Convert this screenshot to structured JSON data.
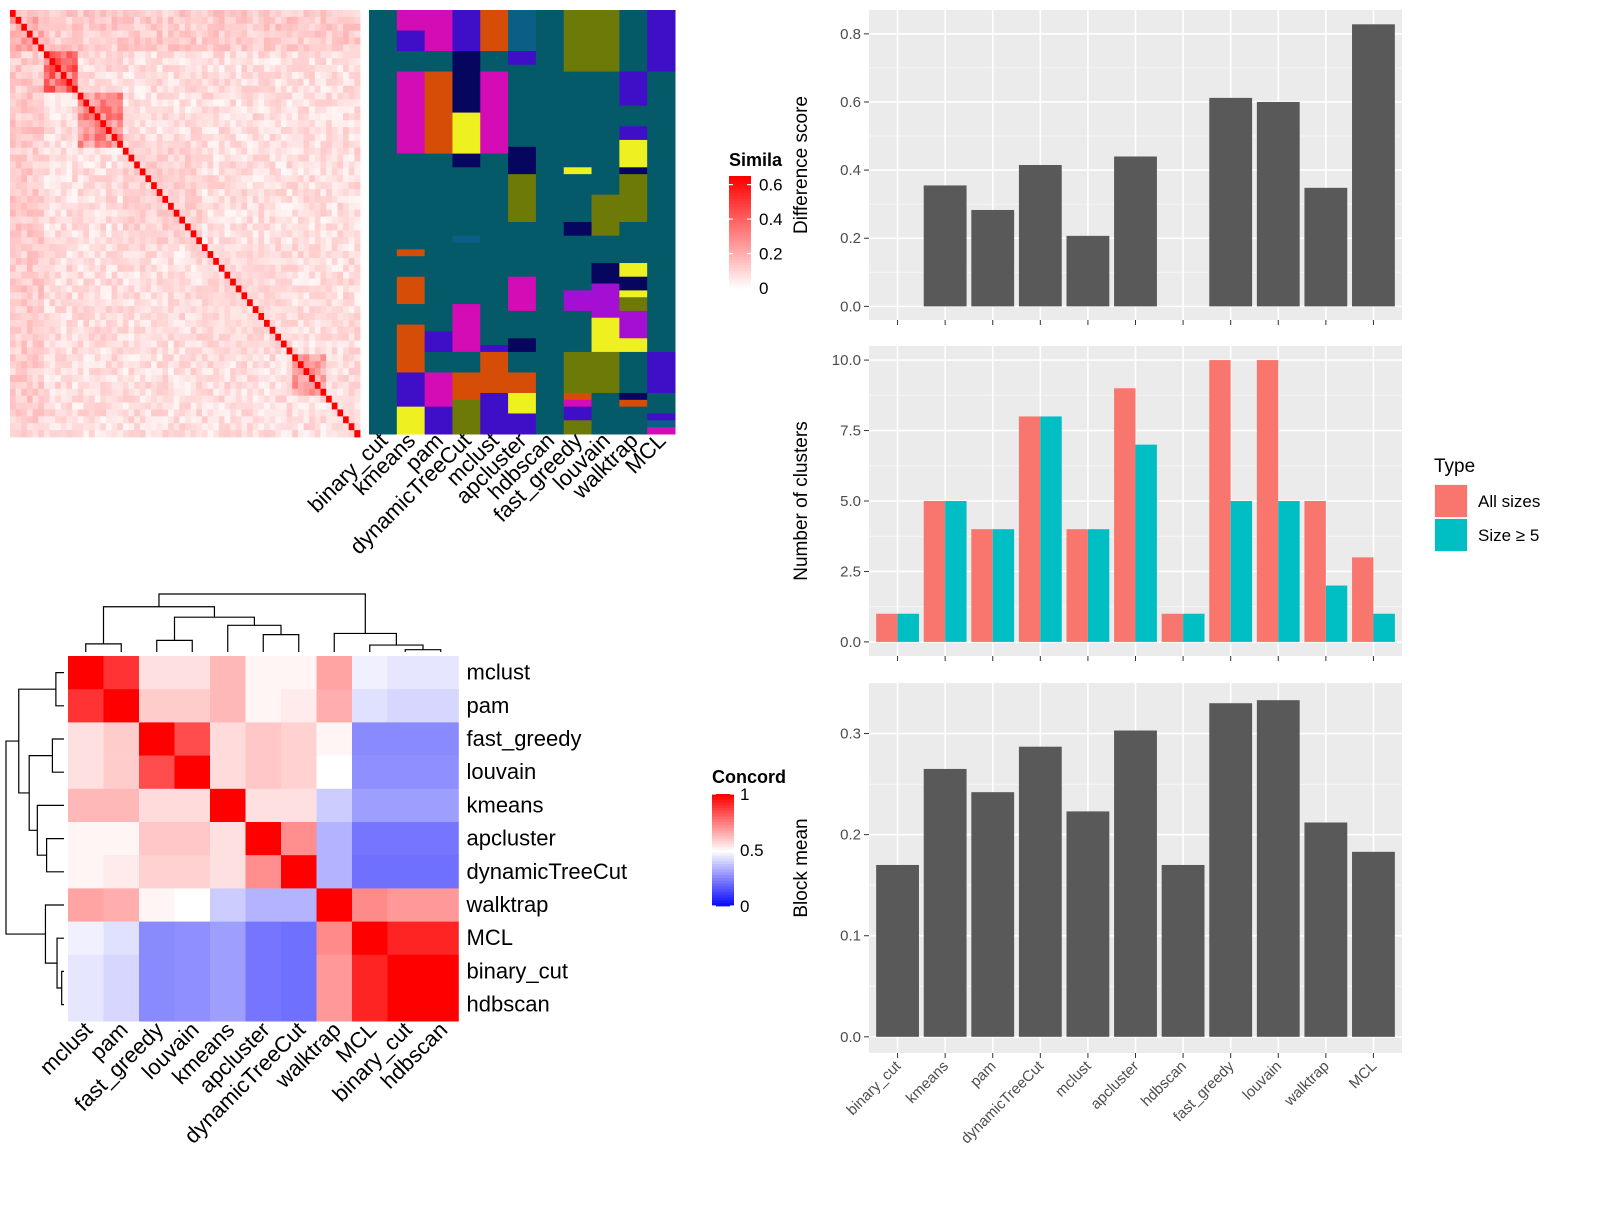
{
  "chart_data": [
    {
      "id": "similarity",
      "type": "heatmap",
      "legend_title": "Simila",
      "legend_ticks": [
        "0.6",
        "0.4",
        "0.2",
        "0"
      ],
      "legend_values": [
        0.6,
        0.4,
        0.2,
        0
      ],
      "scale": {
        "min": 0,
        "max": 0.65,
        "low": "#ffffff",
        "high": "#ff0000"
      },
      "n_cells": 62
    },
    {
      "id": "cluster-assignments",
      "type": "heatmap",
      "columns": [
        "binary_cut",
        "kmeans",
        "pam",
        "dynamicTreeCut",
        "mclust",
        "apcluster",
        "hdbscan",
        "fast_greedy",
        "louvain",
        "walktrap",
        "MCL"
      ],
      "palette": [
        "#045a69",
        "#d30cb6",
        "#3f0fc8",
        "#d64d08",
        "#0b5f86",
        "#6e7a08",
        "#eef020",
        "#07065e",
        "#a50fd4"
      ],
      "segments": [
        [
          [
            0,
            62,
            0
          ]
        ],
        [
          [
            0,
            3,
            1
          ],
          [
            3,
            6,
            2
          ],
          [
            6,
            9,
            0
          ],
          [
            9,
            21,
            1
          ],
          [
            21,
            35,
            0
          ],
          [
            35,
            36,
            3
          ],
          [
            36,
            39,
            0
          ],
          [
            39,
            43,
            3
          ],
          [
            43,
            46,
            0
          ],
          [
            46,
            53,
            3
          ],
          [
            53,
            58,
            2
          ],
          [
            58,
            62,
            6
          ]
        ],
        [
          [
            0,
            6,
            1
          ],
          [
            6,
            9,
            0
          ],
          [
            9,
            21,
            3
          ],
          [
            21,
            47,
            0
          ],
          [
            47,
            50,
            2
          ],
          [
            50,
            53,
            0
          ],
          [
            53,
            58,
            1
          ],
          [
            58,
            62,
            2
          ]
        ],
        [
          [
            0,
            6,
            2
          ],
          [
            6,
            9,
            7
          ],
          [
            9,
            15,
            7
          ],
          [
            15,
            21,
            6
          ],
          [
            21,
            23,
            7
          ],
          [
            23,
            33,
            0
          ],
          [
            33,
            34,
            4
          ],
          [
            34,
            43,
            0
          ],
          [
            43,
            50,
            1
          ],
          [
            50,
            53,
            0
          ],
          [
            53,
            57,
            3
          ],
          [
            57,
            62,
            5
          ]
        ],
        [
          [
            0,
            6,
            3
          ],
          [
            6,
            9,
            0
          ],
          [
            9,
            21,
            1
          ],
          [
            21,
            49,
            0
          ],
          [
            49,
            50,
            2
          ],
          [
            50,
            56,
            3
          ],
          [
            56,
            62,
            2
          ]
        ],
        [
          [
            0,
            6,
            4
          ],
          [
            6,
            8,
            2
          ],
          [
            8,
            20,
            0
          ],
          [
            20,
            24,
            7
          ],
          [
            24,
            31,
            5
          ],
          [
            31,
            39,
            0
          ],
          [
            39,
            44,
            1
          ],
          [
            44,
            48,
            0
          ],
          [
            48,
            50,
            7
          ],
          [
            50,
            53,
            0
          ],
          [
            53,
            56,
            3
          ],
          [
            56,
            59,
            6
          ],
          [
            59,
            62,
            2
          ]
        ],
        [
          [
            0,
            62,
            0
          ]
        ],
        [
          [
            0,
            9,
            5
          ],
          [
            9,
            23,
            0
          ],
          [
            23,
            24,
            6
          ],
          [
            24,
            31,
            0
          ],
          [
            31,
            33,
            7
          ],
          [
            33,
            41,
            0
          ],
          [
            41,
            44,
            8
          ],
          [
            44,
            46,
            0
          ],
          [
            46,
            50,
            0
          ],
          [
            50,
            56,
            5
          ],
          [
            56,
            57,
            3
          ],
          [
            57,
            58,
            1
          ],
          [
            58,
            60,
            2
          ],
          [
            60,
            62,
            5
          ]
        ],
        [
          [
            0,
            9,
            5
          ],
          [
            9,
            21,
            0
          ],
          [
            21,
            27,
            0
          ],
          [
            27,
            33,
            5
          ],
          [
            33,
            37,
            0
          ],
          [
            37,
            40,
            7
          ],
          [
            40,
            45,
            8
          ],
          [
            45,
            50,
            6
          ],
          [
            50,
            56,
            5
          ],
          [
            56,
            62,
            0
          ]
        ],
        [
          [
            0,
            9,
            0
          ],
          [
            9,
            14,
            2
          ],
          [
            14,
            17,
            0
          ],
          [
            17,
            19,
            2
          ],
          [
            19,
            23,
            6
          ],
          [
            23,
            24,
            7
          ],
          [
            24,
            31,
            5
          ],
          [
            31,
            37,
            0
          ],
          [
            37,
            39,
            6
          ],
          [
            39,
            41,
            7
          ],
          [
            41,
            42,
            6
          ],
          [
            42,
            44,
            5
          ],
          [
            44,
            48,
            8
          ],
          [
            48,
            50,
            6
          ],
          [
            50,
            56,
            0
          ],
          [
            56,
            57,
            7
          ],
          [
            57,
            58,
            3
          ],
          [
            58,
            62,
            0
          ]
        ],
        [
          [
            0,
            9,
            2
          ],
          [
            9,
            50,
            0
          ],
          [
            50,
            56,
            2
          ],
          [
            56,
            59,
            0
          ],
          [
            59,
            60,
            2
          ],
          [
            60,
            61,
            4
          ],
          [
            61,
            62,
            1
          ]
        ]
      ]
    },
    {
      "id": "concordance",
      "type": "heatmap",
      "legend_title": "Concord",
      "legend_ticks": [
        "1",
        "0.5",
        "0"
      ],
      "legend_values": [
        1,
        0.5,
        0
      ],
      "scale": {
        "min": 0,
        "mid": 0.5,
        "max": 1,
        "low": "#0000ff",
        "midColor": "#ffffff",
        "high": "#ff0000"
      },
      "labels": [
        "mclust",
        "pam",
        "fast_greedy",
        "louvain",
        "kmeans",
        "apcluster",
        "dynamicTreeCut",
        "walktrap",
        "MCL",
        "binary_cut",
        "hdbscan"
      ],
      "matrix": [
        [
          1.0,
          0.9,
          0.56,
          0.56,
          0.64,
          0.52,
          0.52,
          0.68,
          0.47,
          0.45,
          0.45
        ],
        [
          0.9,
          1.0,
          0.6,
          0.6,
          0.64,
          0.52,
          0.54,
          0.66,
          0.44,
          0.42,
          0.42
        ],
        [
          0.56,
          0.6,
          1.0,
          0.85,
          0.57,
          0.61,
          0.59,
          0.52,
          0.27,
          0.27,
          0.27
        ],
        [
          0.56,
          0.6,
          0.85,
          1.0,
          0.57,
          0.61,
          0.59,
          0.5,
          0.28,
          0.28,
          0.28
        ],
        [
          0.64,
          0.64,
          0.57,
          0.57,
          1.0,
          0.56,
          0.56,
          0.4,
          0.31,
          0.31,
          0.31
        ],
        [
          0.52,
          0.52,
          0.61,
          0.61,
          0.56,
          1.0,
          0.72,
          0.35,
          0.23,
          0.23,
          0.23
        ],
        [
          0.52,
          0.54,
          0.59,
          0.59,
          0.56,
          0.72,
          1.0,
          0.35,
          0.22,
          0.22,
          0.22
        ],
        [
          0.68,
          0.66,
          0.52,
          0.5,
          0.4,
          0.35,
          0.35,
          1.0,
          0.73,
          0.7,
          0.7
        ],
        [
          0.47,
          0.44,
          0.27,
          0.28,
          0.31,
          0.23,
          0.22,
          0.73,
          1.0,
          0.93,
          0.93
        ],
        [
          0.45,
          0.42,
          0.27,
          0.28,
          0.31,
          0.23,
          0.22,
          0.7,
          0.93,
          1.0,
          1.0
        ],
        [
          0.45,
          0.42,
          0.27,
          0.28,
          0.31,
          0.23,
          0.22,
          0.7,
          0.93,
          1.0,
          1.0
        ]
      ]
    },
    {
      "id": "difference-score",
      "type": "bar",
      "categories": [
        "binary_cut",
        "kmeans",
        "pam",
        "dynamicTreeCut",
        "mclust",
        "apcluster",
        "hdbscan",
        "fast_greedy",
        "louvain",
        "walktrap",
        "MCL"
      ],
      "values": [
        0,
        0.355,
        0.283,
        0.415,
        0.207,
        0.44,
        0,
        0.612,
        0.6,
        0.348,
        0.828
      ],
      "ylabel": "Difference score",
      "ylim": [
        -0.04,
        0.87
      ],
      "yticks": [
        0.0,
        0.2,
        0.4,
        0.6,
        0.8
      ],
      "ytick_labels": [
        "0.0",
        "0.2",
        "0.4",
        "0.6",
        "0.8"
      ],
      "bar_color": "#595959"
    },
    {
      "id": "number-of-clusters",
      "type": "bar",
      "categories": [
        "binary_cut",
        "kmeans",
        "pam",
        "dynamicTreeCut",
        "mclust",
        "apcluster",
        "hdbscan",
        "fast_greedy",
        "louvain",
        "walktrap",
        "MCL"
      ],
      "series": [
        {
          "name": "All sizes",
          "values": [
            1,
            5,
            4,
            8,
            4,
            9,
            1,
            10,
            10,
            5,
            3
          ],
          "color": "#f8766d"
        },
        {
          "name": "Size ≥ 5",
          "values": [
            1,
            5,
            4,
            8,
            4,
            7,
            1,
            5,
            5,
            2,
            1
          ],
          "color": "#00bfc4"
        }
      ],
      "ylabel": "Number of clusters",
      "ylim": [
        -0.5,
        10.5
      ],
      "yticks": [
        0.0,
        2.5,
        5.0,
        7.5,
        10.0
      ],
      "ytick_labels": [
        "0.0",
        "2.5",
        "5.0",
        "7.5",
        "10.0"
      ],
      "legend_title": "Type",
      "legend_position": "right"
    },
    {
      "id": "block-mean",
      "type": "bar",
      "categories": [
        "binary_cut",
        "kmeans",
        "pam",
        "dynamicTreeCut",
        "mclust",
        "apcluster",
        "hdbscan",
        "fast_greedy",
        "louvain",
        "walktrap",
        "MCL"
      ],
      "values": [
        0.17,
        0.265,
        0.242,
        0.287,
        0.223,
        0.303,
        0.17,
        0.33,
        0.333,
        0.212,
        0.183
      ],
      "ylabel": "Block mean",
      "ylim": [
        -0.016,
        0.35
      ],
      "yticks": [
        0.0,
        0.1,
        0.2,
        0.3
      ],
      "ytick_labels": [
        "0.0",
        "0.1",
        "0.2",
        "0.3"
      ],
      "bar_color": "#595959"
    }
  ]
}
